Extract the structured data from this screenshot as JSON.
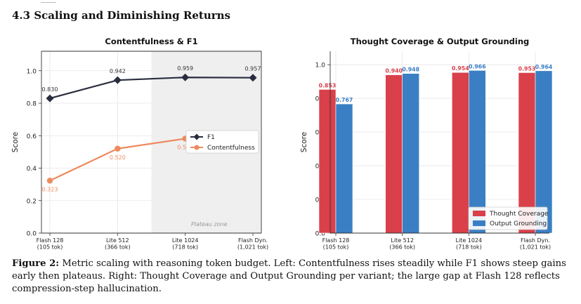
{
  "section": {
    "title": "4.3 Scaling and Diminishing Returns"
  },
  "caption": {
    "label": "Figure 2:",
    "text": "Metric scaling with reasoning token budget. Left: Contentfulness rises steadily while F1 shows steep gains early then plateaus. Right: Thought Coverage and Output Grounding per variant; the large gap at Flash 128 reflects compression-step hallucination."
  },
  "colors": {
    "f1": "#2a2d40",
    "contentfulness": "#ee8a5e",
    "thought_coverage": "#d9404a",
    "output_grounding": "#3a7fc4",
    "plateau_fill": "#efefef"
  },
  "chart_data": [
    {
      "type": "line",
      "title": "Contentfulness & F1",
      "xlabel": "",
      "ylabel": "Score",
      "ylim": [
        0,
        1.12
      ],
      "yticks": [
        "0.0",
        "0.2",
        "0.4",
        "0.6",
        "0.8",
        "1.0"
      ],
      "categories": [
        [
          "Flash 128",
          "(105 tok)"
        ],
        [
          "Lite 512",
          "(366 tok)"
        ],
        [
          "Lite 1024",
          "(718 tok)"
        ],
        [
          "Flash Dyn.",
          "(1,021 tok)"
        ]
      ],
      "series": [
        {
          "name": "F1",
          "marker": "diamond",
          "values": [
            0.83,
            0.942,
            0.959,
            0.957
          ],
          "labels": [
            "0.830",
            "0.942",
            "0.959",
            "0.957"
          ]
        },
        {
          "name": "Contentfulness",
          "marker": "circle",
          "values": [
            0.323,
            0.52,
            0.582,
            0.597
          ],
          "labels": [
            "0.323",
            "0.520",
            "0.582",
            ""
          ]
        }
      ],
      "shaded_region": {
        "label": "Plateau zone",
        "from_category": 2,
        "to_category": 3
      },
      "grid": true,
      "legend": "center-right"
    },
    {
      "type": "bar",
      "title": "Thought Coverage & Output Grounding",
      "xlabel": "",
      "ylabel": "Score",
      "ylim": [
        0,
        1.08
      ],
      "yticks": [
        "0.0",
        "0.2",
        "0.4",
        "0.6",
        "0.8",
        "1.0"
      ],
      "categories": [
        [
          "Flash 128",
          "(105 tok)"
        ],
        [
          "Lite 512",
          "(366 tok)"
        ],
        [
          "Lite 1024",
          "(718 tok)"
        ],
        [
          "Flash Dyn.",
          "(1,021 tok)"
        ]
      ],
      "series": [
        {
          "name": "Thought Coverage",
          "values": [
            0.853,
            0.94,
            0.954,
            0.953
          ],
          "labels": [
            "0.853",
            "0.940",
            "0.954",
            "0.953"
          ]
        },
        {
          "name": "Output Grounding",
          "values": [
            0.767,
            0.948,
            0.966,
            0.964
          ],
          "labels": [
            "0.767",
            "0.948",
            "0.966",
            "0.964"
          ]
        }
      ],
      "grid": true,
      "legend": "lower-right"
    }
  ]
}
